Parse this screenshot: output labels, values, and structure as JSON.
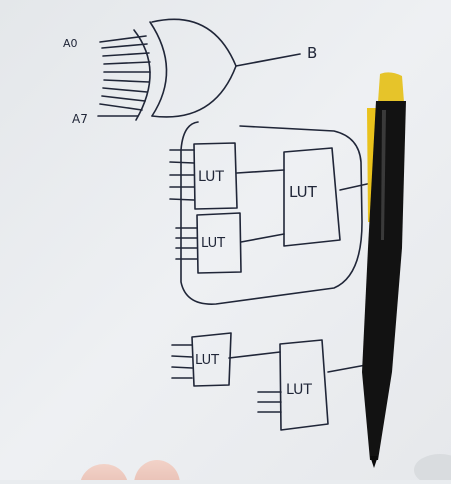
{
  "diagram": {
    "xor_inputs": {
      "first": "A0",
      "last": "A7"
    },
    "xor_output": "B",
    "luts": {
      "group1_top": "LUT",
      "group1_bottom": "LUT",
      "group1_combiner": "LUT",
      "group2_first": "LUT",
      "group2_second": "LUT"
    }
  },
  "colors": {
    "ink": "#202638",
    "paper": "#eceff2",
    "pen_body": "#121212",
    "pen_clip": "#e9c21c"
  },
  "objects": {
    "pen": "pen",
    "fingers": "fingertips"
  }
}
